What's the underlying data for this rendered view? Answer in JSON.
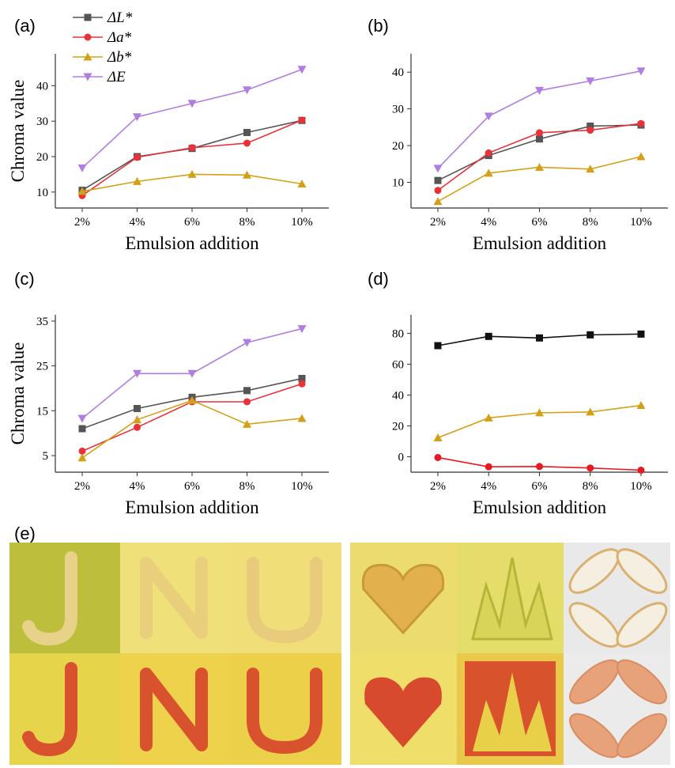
{
  "chart_data": [
    {
      "type": "line",
      "panel": "(a)",
      "x_label": "Emulsion addition",
      "y_label": "Chroma value",
      "categories": [
        "2%",
        "4%",
        "6%",
        "8%",
        "10%"
      ],
      "ylim": [
        5.5,
        49
      ],
      "yticks": [
        10,
        20,
        30,
        40
      ],
      "legend": true,
      "series": [
        {
          "name": "ΔL*",
          "color": "#555555",
          "marker": "square",
          "values": [
            10.5,
            20,
            22.3,
            26.8,
            30.2
          ]
        },
        {
          "name": "Δa*",
          "color": "#e8323a",
          "marker": "circle",
          "values": [
            9,
            19.8,
            22.5,
            23.8,
            30.3
          ]
        },
        {
          "name": "Δb*",
          "color": "#d4a017",
          "marker": "triangle-up",
          "values": [
            10.2,
            13,
            15,
            14.8,
            12.3
          ]
        },
        {
          "name": "ΔE",
          "color": "#b07ee0",
          "marker": "triangle-down",
          "values": [
            16.8,
            31.2,
            35,
            38.8,
            44.6
          ]
        }
      ]
    },
    {
      "type": "line",
      "panel": "(b)",
      "x_label": "Emulsion addition",
      "categories": [
        "2%",
        "4%",
        "6%",
        "8%",
        "10%"
      ],
      "ylim": [
        3,
        45
      ],
      "yticks": [
        10,
        20,
        30,
        40
      ],
      "legend": false,
      "series": [
        {
          "color": "#555555",
          "marker": "square",
          "values": [
            10.5,
            17.3,
            21.8,
            25.3,
            25.6
          ]
        },
        {
          "color": "#e8323a",
          "marker": "circle",
          "values": [
            7.8,
            18,
            23.5,
            24.2,
            26
          ]
        },
        {
          "color": "#d4a017",
          "marker": "triangle-up",
          "values": [
            4.8,
            12.5,
            14.1,
            13.6,
            17
          ]
        },
        {
          "color": "#b07ee0",
          "marker": "triangle-down",
          "values": [
            13.8,
            28,
            35,
            37.6,
            40.3
          ]
        }
      ]
    },
    {
      "type": "line",
      "panel": "(c)",
      "x_label": "Emulsion addition",
      "y_label": "Chroma value",
      "categories": [
        "2%",
        "4%",
        "6%",
        "8%",
        "10%"
      ],
      "ylim": [
        1.3,
        36.4
      ],
      "yticks": [
        5,
        15,
        25,
        35
      ],
      "legend": false,
      "series": [
        {
          "color": "#555555",
          "marker": "square",
          "values": [
            11,
            15.5,
            18,
            19.5,
            22.2
          ]
        },
        {
          "color": "#e8323a",
          "marker": "circle",
          "values": [
            6,
            11.3,
            17,
            17,
            21
          ]
        },
        {
          "color": "#d4a017",
          "marker": "triangle-up",
          "values": [
            4.5,
            13,
            17.3,
            12,
            13.3
          ]
        },
        {
          "color": "#b07ee0",
          "marker": "triangle-down",
          "values": [
            13.3,
            23.3,
            23.3,
            30.2,
            33.3
          ]
        }
      ]
    },
    {
      "type": "line",
      "panel": "(d)",
      "x_label": "Emulsion addition",
      "categories": [
        "2%",
        "4%",
        "6%",
        "8%",
        "10%"
      ],
      "ylim": [
        -10,
        92
      ],
      "yticks": [
        0,
        20,
        40,
        60,
        80
      ],
      "legend": false,
      "series": [
        {
          "color": "#111111",
          "marker": "square",
          "values": [
            72,
            78,
            77,
            79,
            79.5
          ]
        },
        {
          "color": "#e8191f",
          "marker": "circle",
          "values": [
            -0.5,
            -6.5,
            -6.3,
            -7.3,
            -8.7
          ]
        },
        {
          "color": "#d4a017",
          "marker": "triangle-up",
          "values": [
            12.3,
            25.2,
            28.5,
            29,
            33.3
          ]
        }
      ]
    }
  ],
  "photos": {
    "panel": "(e)"
  }
}
